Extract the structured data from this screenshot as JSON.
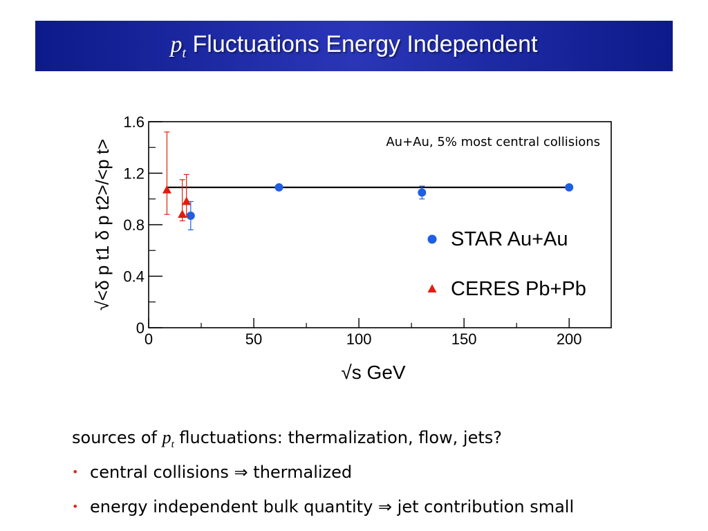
{
  "title": {
    "symbol": "p",
    "symbol_sub": "t",
    "text": "Fluctuations Energy Independent"
  },
  "chart_data": {
    "type": "scatter",
    "annotation": "Au+Au, 5% most central collisions",
    "xlabel": "√s GeV",
    "ylabel": "√<δ p t1 δ p t2>/<p t>",
    "xlim": [
      0,
      220
    ],
    "ylim": [
      0,
      1.6
    ],
    "xticks": [
      "0",
      "50",
      "100",
      "150",
      "200"
    ],
    "yticks": [
      "0",
      "0.4",
      "0.8",
      "1.2",
      "1.6"
    ],
    "grid": false,
    "legend_position": "bottom-right",
    "fit_line": {
      "x": [
        8.7,
        200
      ],
      "y": [
        1.09,
        1.09
      ],
      "color": "#000000"
    },
    "series": [
      {
        "name": "STAR Au+Au",
        "marker": "circle",
        "color": "#1f5fe0",
        "points": [
          {
            "x": 20,
            "y": 0.87,
            "err": 0.11
          },
          {
            "x": 62,
            "y": 1.09,
            "err": 0.02
          },
          {
            "x": 130,
            "y": 1.05,
            "err": 0.05
          },
          {
            "x": 200,
            "y": 1.09,
            "err": 0.02
          }
        ]
      },
      {
        "name": "CERES Pb+Pb",
        "marker": "triangle",
        "color": "#e01e0e",
        "points": [
          {
            "x": 8.7,
            "y": 1.07,
            "err_hi": 0.45,
            "err_lo": 0.19
          },
          {
            "x": 16,
            "y": 0.88,
            "err_hi": 0.27,
            "err_lo": 0.05
          },
          {
            "x": 18,
            "y": 0.98,
            "err_hi": 0.21,
            "err_lo": 0.12
          }
        ]
      }
    ]
  },
  "bullets": {
    "intro_before": "sources of ",
    "intro_symbol": "p",
    "intro_symbol_sub": "t",
    "intro_after": " fluctuations: thermalization, flow, jets?",
    "bullet_char": "•",
    "implies": "⇒",
    "item1_a": "central collisions ",
    "item1_b": " thermalized",
    "item2_a": "energy independent bulk quantity ",
    "item2_b": " jet contribution small"
  }
}
